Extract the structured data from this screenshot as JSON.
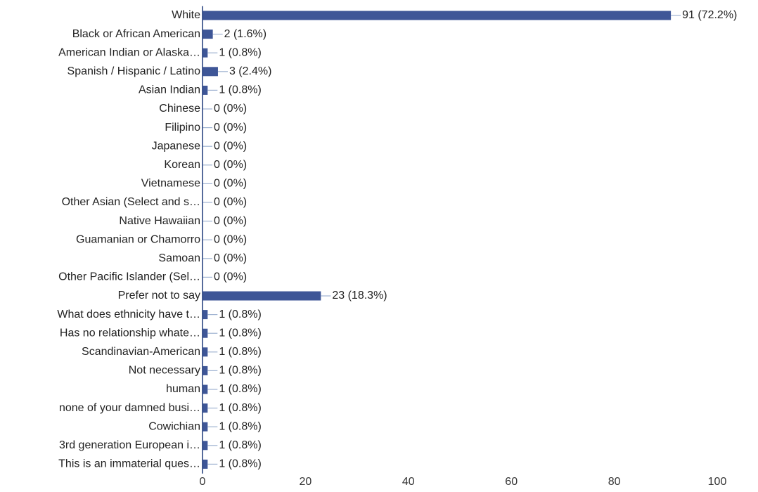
{
  "chart_data": {
    "type": "bar",
    "orientation": "horizontal",
    "title": "",
    "xlabel": "",
    "ylabel": "",
    "xlim": [
      0,
      100
    ],
    "x_ticks": [
      0,
      20,
      40,
      60,
      80,
      100
    ],
    "grid": false,
    "bar_color": "#3e5697",
    "categories": [
      "White",
      "Black or African American",
      "American Indian or Alaska…",
      "Spanish / Hispanic / Latino",
      "Asian Indian",
      "Chinese",
      "Filipino",
      "Japanese",
      "Korean",
      "Vietnamese",
      "Other Asian (Select and s…",
      "Native Hawaiian",
      "Guamanian or Chamorro",
      "Samoan",
      "Other Pacific Islander (Sel…",
      "Prefer not to say",
      "What does ethnicity have t…",
      "Has no relationship whate…",
      "Scandinavian-American",
      "Not necessary",
      "human",
      "none of your damned busi…",
      "Cowichian",
      "3rd generation European i…",
      "This is an immaterial ques…"
    ],
    "values": [
      91,
      2,
      1,
      3,
      1,
      0,
      0,
      0,
      0,
      0,
      0,
      0,
      0,
      0,
      0,
      23,
      1,
      1,
      1,
      1,
      1,
      1,
      1,
      1,
      1
    ],
    "data_labels": [
      "91 (72.2%)",
      "2 (1.6%)",
      "1 (0.8%)",
      "3 (2.4%)",
      "1 (0.8%)",
      "0 (0%)",
      "0 (0%)",
      "0 (0%)",
      "0 (0%)",
      "0 (0%)",
      "0 (0%)",
      "0 (0%)",
      "0 (0%)",
      "0 (0%)",
      "0 (0%)",
      "23 (18.3%)",
      "1 (0.8%)",
      "1 (0.8%)",
      "1 (0.8%)",
      "1 (0.8%)",
      "1 (0.8%)",
      "1 (0.8%)",
      "1 (0.8%)",
      "1 (0.8%)",
      "1 (0.8%)"
    ]
  }
}
